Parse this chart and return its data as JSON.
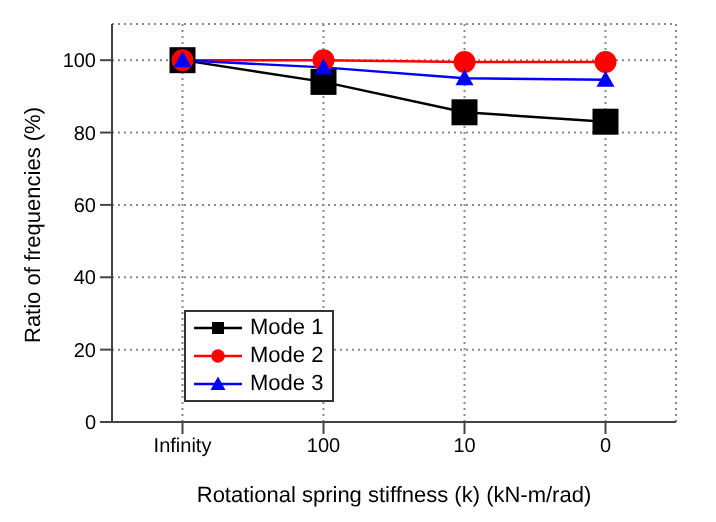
{
  "chart_data": {
    "type": "line",
    "xlabel": "Rotational spring stiffness (k) (kN-m/rad)",
    "ylabel": "Ratio of frequencies (%)",
    "categories": [
      "Infinity",
      "100",
      "10",
      "0"
    ],
    "series": [
      {
        "name": "Mode 1",
        "color": "#000000",
        "marker": "square",
        "values": [
          100,
          94,
          85.6,
          83
        ]
      },
      {
        "name": "Mode 2",
        "color": "#ff0000",
        "marker": "circle",
        "values": [
          100,
          100,
          99.5,
          99.5
        ]
      },
      {
        "name": "Mode 3",
        "color": "#0000ff",
        "marker": "triangle",
        "values": [
          100,
          98,
          95,
          94.6
        ]
      }
    ],
    "ylim": [
      0,
      110
    ],
    "yticks": [
      0,
      20,
      40,
      60,
      80,
      100
    ],
    "grid": true,
    "legend": "bottom left"
  }
}
